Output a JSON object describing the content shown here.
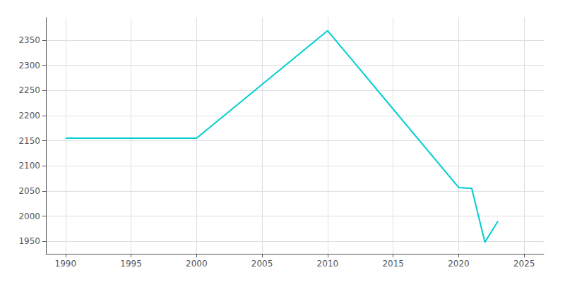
{
  "chart_data": {
    "type": "line",
    "x": [
      1990,
      2000,
      2010,
      2020,
      2021,
      2022,
      2023
    ],
    "values": [
      2155,
      2155,
      2369,
      2057,
      2055,
      1948,
      1990
    ],
    "color": "#00CED1",
    "xlim": [
      1988.5,
      2026.5
    ],
    "ylim": [
      1925,
      2395
    ],
    "xticks": [
      1990,
      1995,
      2000,
      2005,
      2010,
      2015,
      2020,
      2025
    ],
    "yticks": [
      1950,
      2000,
      2050,
      2100,
      2150,
      2200,
      2250,
      2300,
      2350
    ],
    "grid": true
  }
}
